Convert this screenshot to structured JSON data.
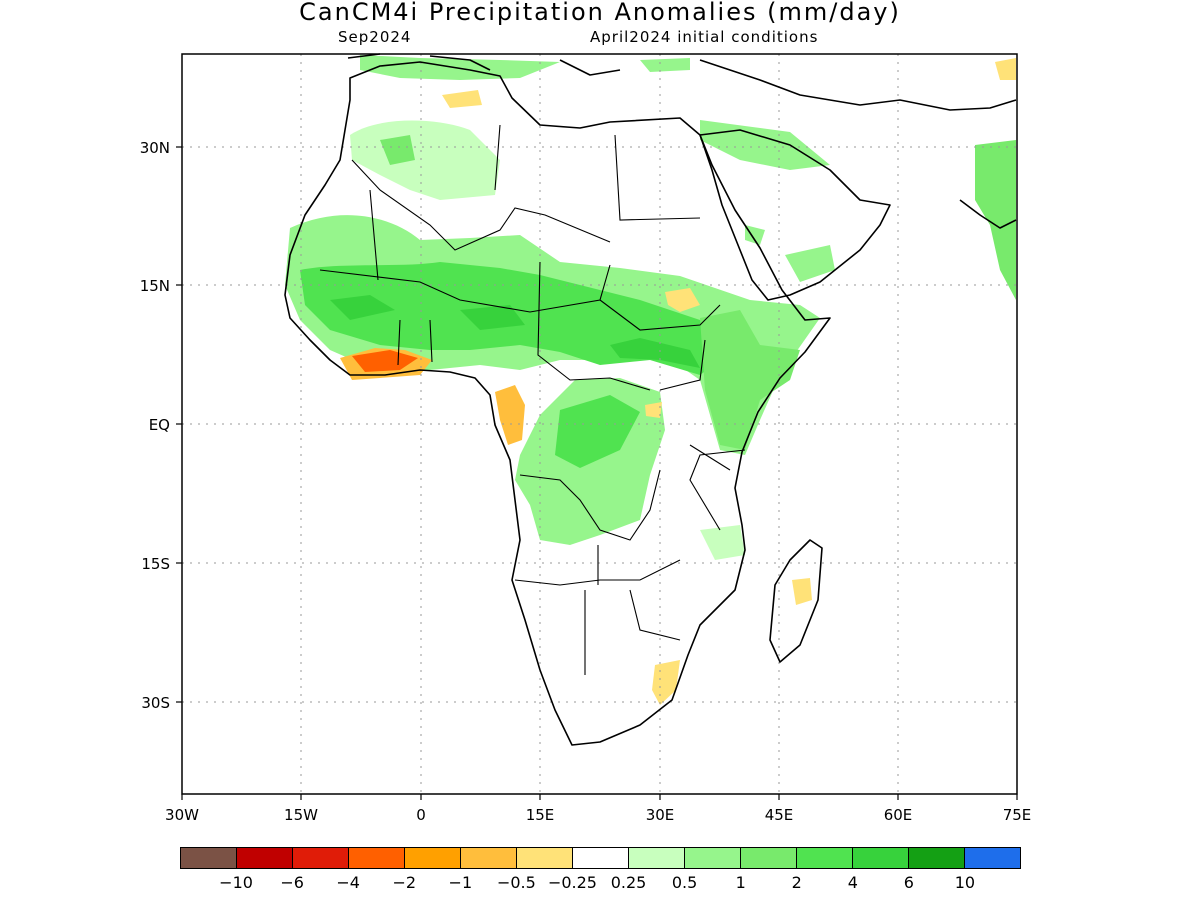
{
  "title": "CanCM4i Precipitation Anomalies (mm/day)",
  "subtitle_left": "Sep2024",
  "subtitle_right": "April2024 initial conditions",
  "map": {
    "lon_range": [
      -30,
      75
    ],
    "lat_range": [
      -42,
      42
    ],
    "x_ticks": [
      "30W",
      "15W",
      "0",
      "15E",
      "30E",
      "45E",
      "60E",
      "75E"
    ],
    "y_ticks": [
      "30N",
      "15N",
      "EQ",
      "15S",
      "30S"
    ],
    "grid": "dotted"
  },
  "colorbar": {
    "colors": [
      "#7b5245",
      "#c00000",
      "#e01c08",
      "#ff6000",
      "#ffa000",
      "#ffbe3c",
      "#ffe278",
      "#ffffff",
      "#c8ffbe",
      "#96f58c",
      "#78ea6c",
      "#50e350",
      "#37d23c",
      "#14a014",
      "#1e6eeb"
    ],
    "labels": [
      "−10",
      "−6",
      "−4",
      "−2",
      "−1",
      "−0.5",
      "−0.25",
      "0.25",
      "0.5",
      "1",
      "2",
      "4",
      "6",
      "10"
    ]
  }
}
